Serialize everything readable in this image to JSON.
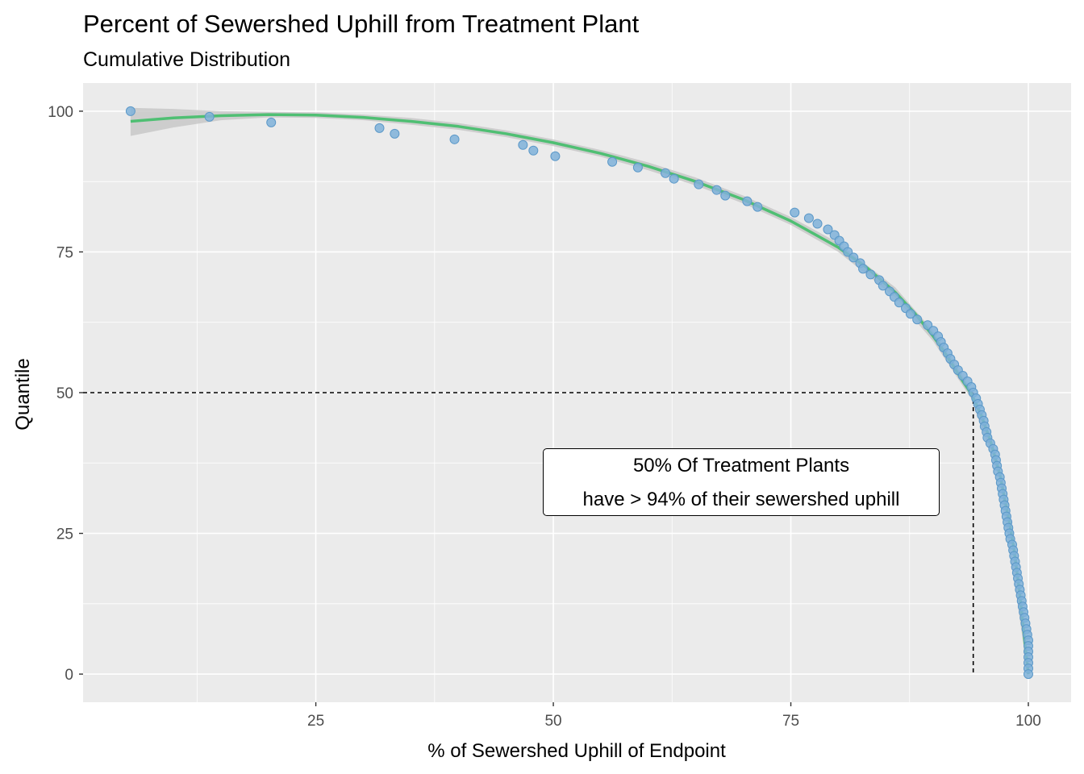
{
  "chart_data": {
    "type": "scatter",
    "title": "Percent of Sewershed Uphill from Treatment Plant",
    "subtitle": "Cumulative Distribution",
    "xlabel": "% of Sewershed Uphill of Endpoint",
    "ylabel": "Quantile",
    "xlim": [
      0.5,
      104.5
    ],
    "ylim": [
      -5,
      105
    ],
    "xticks": [
      25,
      50,
      75,
      100
    ],
    "yticks": [
      0,
      25,
      50,
      75,
      100
    ],
    "grid": true,
    "point_color": "#7fb2d9",
    "point_edge_color": "#5b98c8",
    "fit_color": "#4fbf73",
    "ribbon_color": "#c8c8c8",
    "reference_lines": {
      "x": 94.2,
      "y": 50
    },
    "annotation": {
      "line1": "50% Of Treatment Plants",
      "line2": "have > 94% of their sewershed uphill"
    },
    "points": [
      [
        5.5,
        100
      ],
      [
        13.8,
        99
      ],
      [
        20.3,
        98
      ],
      [
        31.7,
        97
      ],
      [
        33.3,
        96
      ],
      [
        39.6,
        95
      ],
      [
        46.8,
        94
      ],
      [
        47.9,
        93
      ],
      [
        50.2,
        92
      ],
      [
        56.2,
        91
      ],
      [
        58.9,
        90
      ],
      [
        61.8,
        89
      ],
      [
        62.7,
        88
      ],
      [
        65.3,
        87
      ],
      [
        67.2,
        86
      ],
      [
        68.1,
        85
      ],
      [
        70.4,
        84
      ],
      [
        71.5,
        83
      ],
      [
        75.4,
        82
      ],
      [
        76.9,
        81
      ],
      [
        77.8,
        80
      ],
      [
        78.9,
        79
      ],
      [
        79.6,
        78
      ],
      [
        80.1,
        77
      ],
      [
        80.6,
        76
      ],
      [
        81.0,
        75
      ],
      [
        81.6,
        74
      ],
      [
        82.3,
        73
      ],
      [
        82.6,
        72
      ],
      [
        83.4,
        71
      ],
      [
        84.3,
        70
      ],
      [
        84.7,
        69
      ],
      [
        85.4,
        68
      ],
      [
        85.9,
        67
      ],
      [
        86.4,
        66
      ],
      [
        87.1,
        65
      ],
      [
        87.6,
        64
      ],
      [
        88.3,
        63
      ],
      [
        89.4,
        62
      ],
      [
        90.0,
        61
      ],
      [
        90.5,
        60
      ],
      [
        90.8,
        59
      ],
      [
        91.1,
        58
      ],
      [
        91.5,
        57
      ],
      [
        91.8,
        56
      ],
      [
        92.2,
        55
      ],
      [
        92.6,
        54
      ],
      [
        93.1,
        53
      ],
      [
        93.6,
        52
      ],
      [
        94.0,
        51
      ],
      [
        94.2,
        50
      ],
      [
        94.5,
        49
      ],
      [
        94.7,
        48
      ],
      [
        94.9,
        47
      ],
      [
        95.1,
        46
      ],
      [
        95.3,
        45
      ],
      [
        95.4,
        44
      ],
      [
        95.6,
        43
      ],
      [
        95.7,
        42
      ],
      [
        96.0,
        41
      ],
      [
        96.3,
        40
      ],
      [
        96.5,
        39
      ],
      [
        96.6,
        38
      ],
      [
        96.7,
        37
      ],
      [
        96.8,
        36
      ],
      [
        97.0,
        35
      ],
      [
        97.1,
        34
      ],
      [
        97.2,
        33
      ],
      [
        97.3,
        32
      ],
      [
        97.4,
        31
      ],
      [
        97.5,
        30
      ],
      [
        97.6,
        29
      ],
      [
        97.7,
        28
      ],
      [
        97.8,
        27
      ],
      [
        97.9,
        26
      ],
      [
        98.0,
        25
      ],
      [
        98.1,
        24
      ],
      [
        98.3,
        23
      ],
      [
        98.4,
        22
      ],
      [
        98.5,
        21
      ],
      [
        98.6,
        20
      ],
      [
        98.7,
        19
      ],
      [
        98.8,
        18
      ],
      [
        98.9,
        17
      ],
      [
        99.0,
        16
      ],
      [
        99.1,
        15
      ],
      [
        99.2,
        14
      ],
      [
        99.3,
        13
      ],
      [
        99.4,
        12
      ],
      [
        99.5,
        11
      ],
      [
        99.6,
        10
      ],
      [
        99.7,
        9
      ],
      [
        99.8,
        8
      ],
      [
        99.9,
        7
      ],
      [
        100,
        6
      ],
      [
        100,
        5
      ],
      [
        100,
        4
      ],
      [
        100,
        3
      ],
      [
        100,
        2
      ],
      [
        100,
        1
      ],
      [
        100,
        0
      ]
    ],
    "fit": [
      [
        5.5,
        98.2
      ],
      [
        10,
        98.8
      ],
      [
        15,
        99.2
      ],
      [
        20,
        99.4
      ],
      [
        25,
        99.3
      ],
      [
        30,
        98.9
      ],
      [
        35,
        98.2
      ],
      [
        40,
        97.3
      ],
      [
        45,
        96.0
      ],
      [
        50,
        94.4
      ],
      [
        55,
        92.5
      ],
      [
        60,
        90.2
      ],
      [
        65,
        87.5
      ],
      [
        70,
        84.3
      ],
      [
        75,
        80.5
      ],
      [
        80,
        75.8
      ],
      [
        83,
        72.2
      ],
      [
        86,
        67.8
      ],
      [
        88,
        64.2
      ],
      [
        90,
        60.0
      ],
      [
        91,
        57.6
      ],
      [
        92,
        55.0
      ],
      [
        93,
        52.3
      ],
      [
        94,
        49.8
      ],
      [
        95,
        46.2
      ],
      [
        96,
        41.5
      ],
      [
        97,
        35.5
      ],
      [
        98,
        27.0
      ],
      [
        98.5,
        22.0
      ],
      [
        99,
        15.5
      ],
      [
        99.4,
        9.5
      ],
      [
        99.7,
        4.5
      ],
      [
        100,
        0
      ]
    ],
    "ribbon_upper": [
      [
        5.5,
        100.6
      ],
      [
        10,
        100.4
      ],
      [
        15,
        100.0
      ],
      [
        20,
        99.9
      ],
      [
        25,
        99.8
      ],
      [
        30,
        99.4
      ],
      [
        35,
        98.8
      ],
      [
        40,
        97.9
      ],
      [
        45,
        96.6
      ],
      [
        50,
        95.0
      ],
      [
        55,
        93.1
      ],
      [
        60,
        90.9
      ],
      [
        65,
        88.2
      ],
      [
        70,
        85.0
      ],
      [
        75,
        81.2
      ],
      [
        80,
        76.6
      ],
      [
        86,
        68.7
      ],
      [
        90,
        60.9
      ],
      [
        94,
        50.7
      ],
      [
        97,
        36.4
      ],
      [
        100,
        0.9
      ]
    ],
    "ribbon_lower": [
      [
        5.5,
        95.6
      ],
      [
        10,
        97.1
      ],
      [
        15,
        98.4
      ],
      [
        20,
        98.9
      ],
      [
        25,
        98.8
      ],
      [
        30,
        98.4
      ],
      [
        35,
        97.6
      ],
      [
        40,
        96.7
      ],
      [
        45,
        95.4
      ],
      [
        50,
        93.8
      ],
      [
        55,
        91.9
      ],
      [
        60,
        89.5
      ],
      [
        65,
        86.8
      ],
      [
        70,
        83.6
      ],
      [
        75,
        79.8
      ],
      [
        80,
        75.0
      ],
      [
        86,
        66.9
      ],
      [
        90,
        59.1
      ],
      [
        94,
        48.9
      ],
      [
        97,
        34.6
      ],
      [
        100,
        -0.9
      ]
    ]
  }
}
